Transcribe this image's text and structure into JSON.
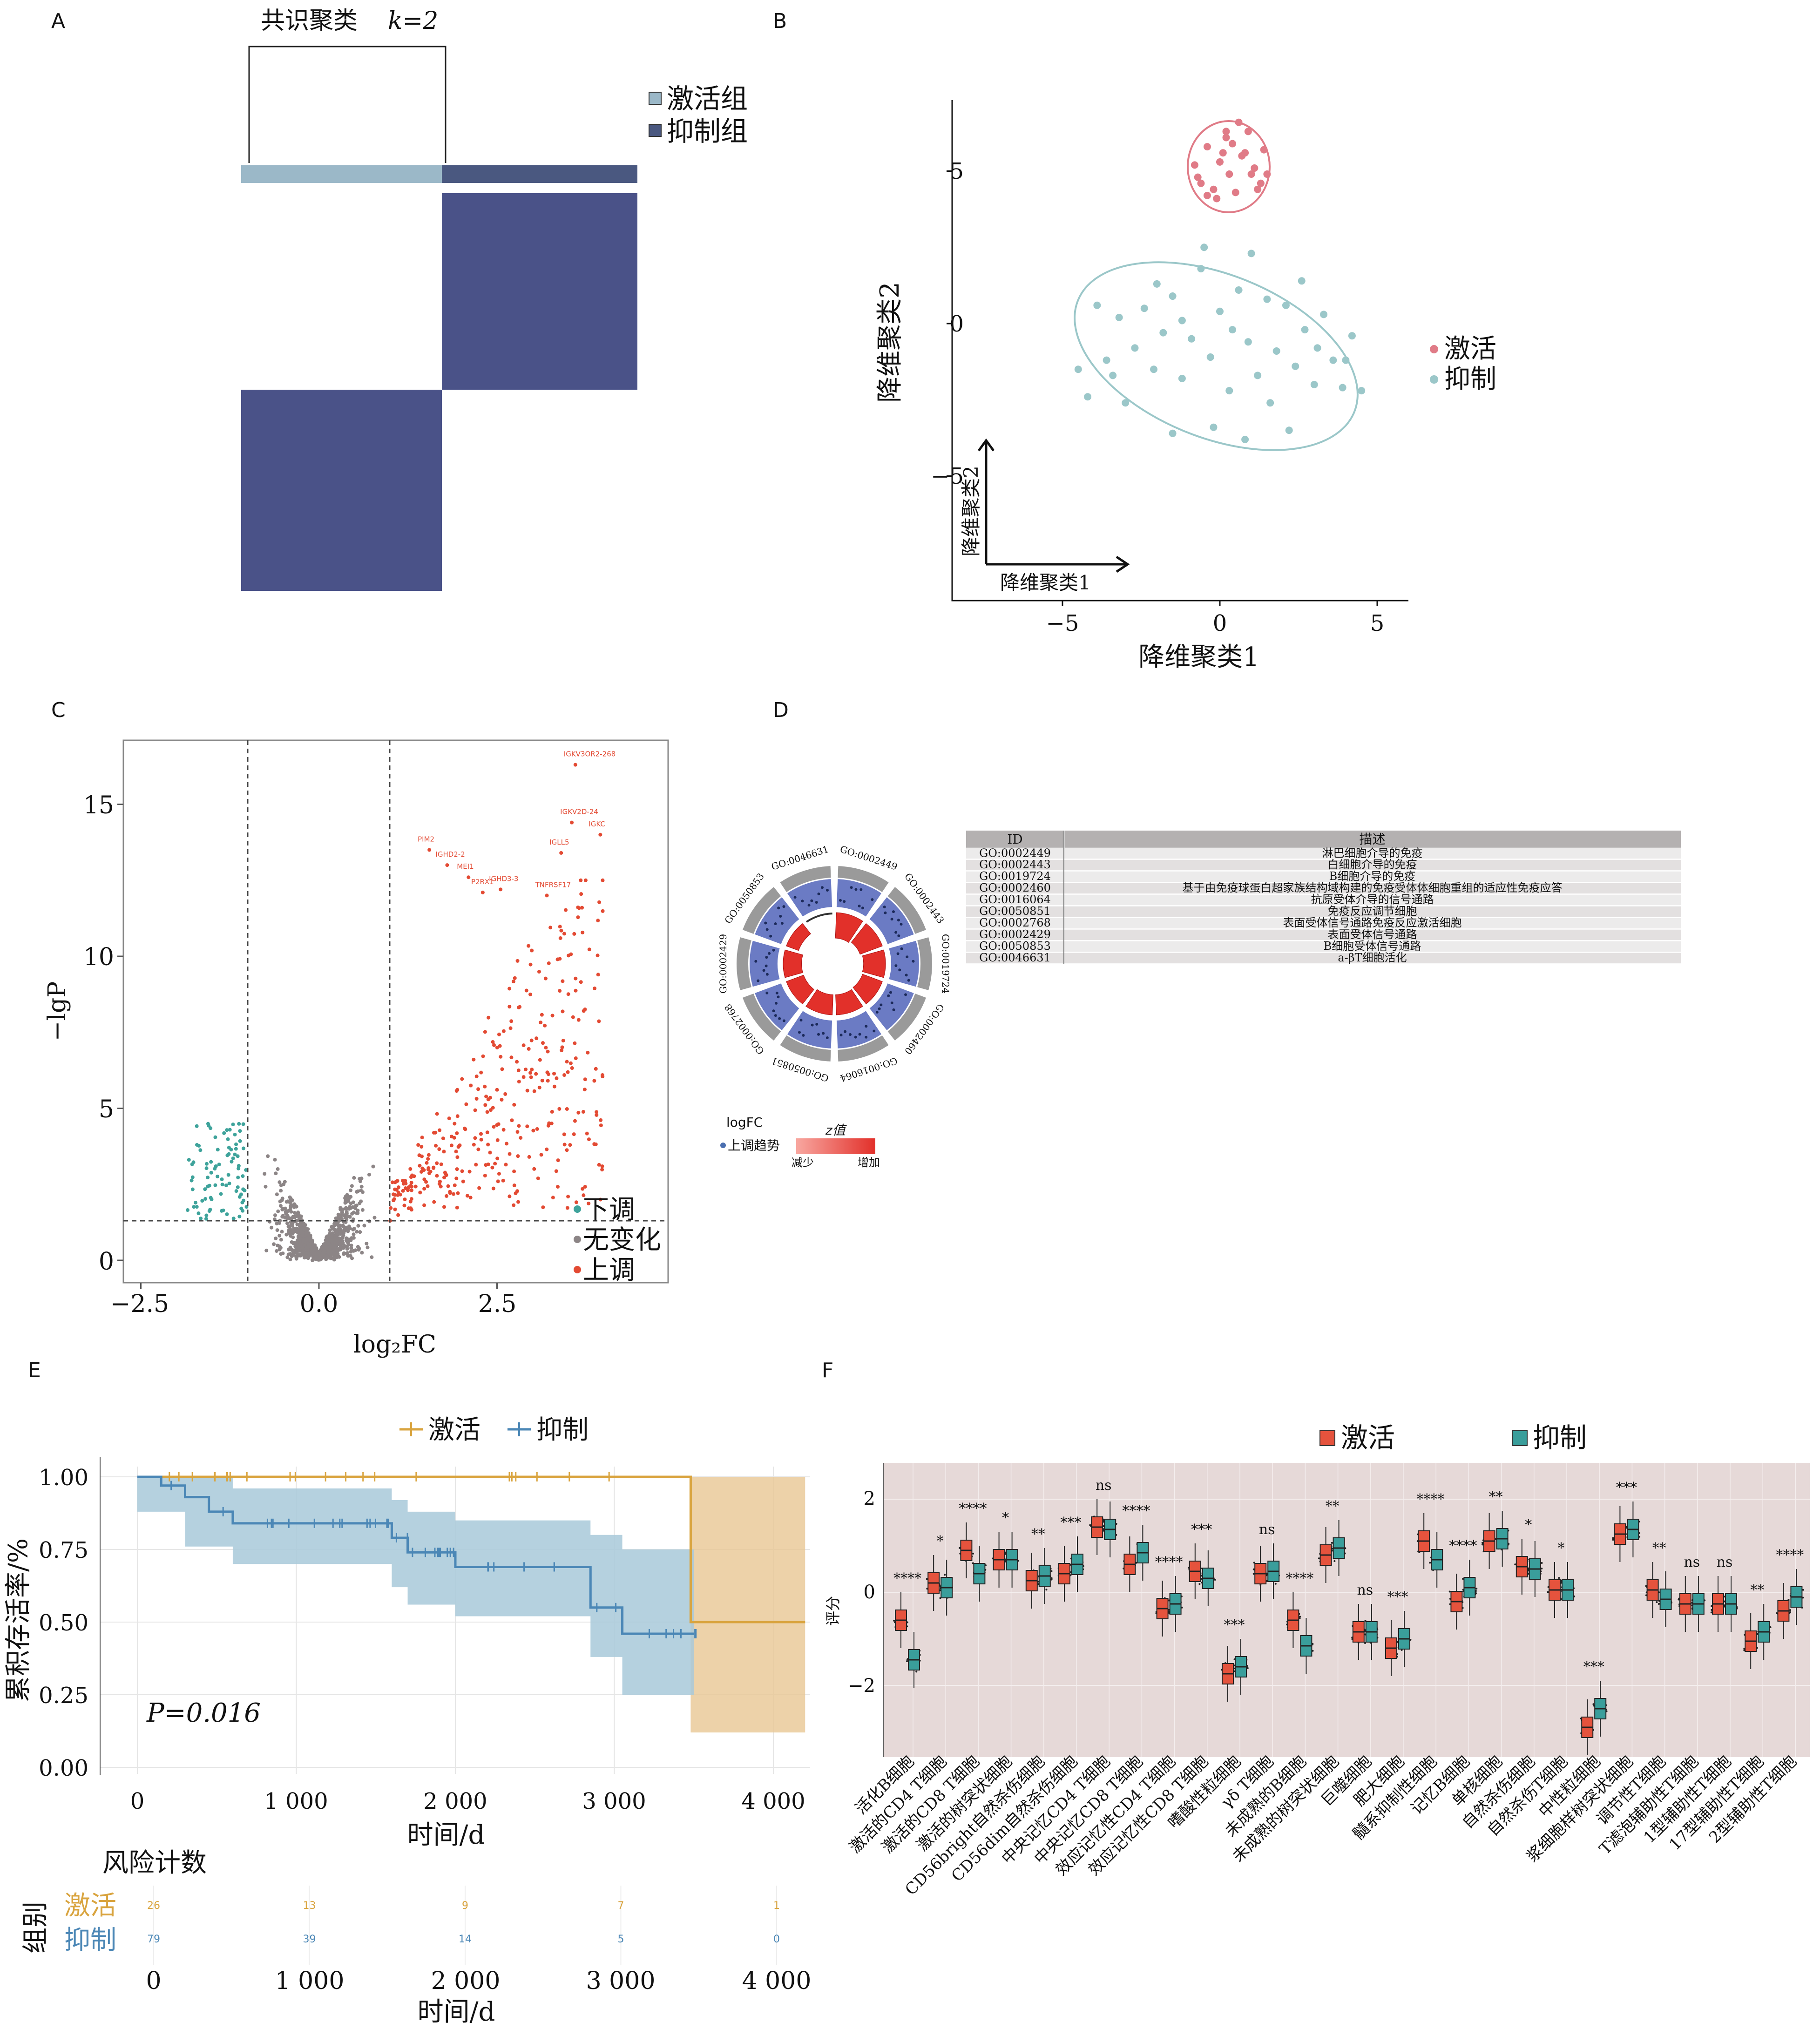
{
  "panel_labels": {
    "a": "A",
    "b": "B",
    "c": "C",
    "d": "D",
    "e": "E",
    "f": "F"
  },
  "colors": {
    "activated": "#9bb8c8",
    "suppressed": "#4a5288",
    "pink": "#e07b87",
    "teal": "#9bc7c9",
    "red": "#e34a33",
    "grey": "#8c8586",
    "tealdown": "#3ea39b",
    "gold": "#d9a43f",
    "blue": "#4b87b6",
    "boxred": "#e5533d",
    "boxteal": "#3a9e9b",
    "panelbg": "#e6d9d8"
  },
  "a": {
    "title": "共识聚类",
    "k": "k=2",
    "legend": [
      "激活组",
      "抑制组"
    ]
  },
  "b": {
    "xlabel": "降维聚类1",
    "ylabel": "降维聚类2",
    "xticks": [
      "−5",
      "0",
      "5"
    ],
    "yticks": [
      "5",
      "0",
      "−5"
    ],
    "arrow_x": "降维聚类1",
    "arrow_y": "降维聚类2",
    "legend": [
      "激活",
      "抑制"
    ]
  },
  "c": {
    "xlabel": "log₂FC",
    "ylabel": "−lgP",
    "xticks": [
      "−2.5",
      "0.0",
      "2.5"
    ],
    "yticks": [
      "15",
      "10",
      "5",
      "0"
    ],
    "legend": [
      "下调",
      "无变化",
      "上调"
    ],
    "genes": [
      "IGKV3OR2-268",
      "IGKV2D-24",
      "IGKC",
      "PIM2",
      "IGLL5",
      "IGHD2-2",
      "MEI1",
      "IGHD3-3",
      "P2RX1",
      "TNFRSF17"
    ]
  },
  "d": {
    "go_ids": [
      "GO:0002449",
      "GO:0002443",
      "GO:0019724",
      "GO:0002460",
      "GO:0016064",
      "GO:0050851",
      "GO:0002768",
      "GO:0002429",
      "GO:0050853",
      "GO:0046631"
    ],
    "legend_title": "logFC",
    "legend_dot": "上调趋势",
    "z_title": "z值",
    "z_low": "减少",
    "z_high": "增加",
    "table": {
      "header": [
        "ID",
        "描述"
      ],
      "rows": [
        [
          "GO:0002449",
          "淋巴细胞介导的免疫"
        ],
        [
          "GO:0002443",
          "白细胞介导的免疫"
        ],
        [
          "GO:0019724",
          "B细胞介导的免疫"
        ],
        [
          "GO:0002460",
          "基于由免疫球蛋白超家族结构域构建的免疫受体体细胞重组的适应性免疫应答"
        ],
        [
          "GO:0016064",
          "抗原受体介导的信号通路"
        ],
        [
          "GO:0050851",
          "免疫反应调节细胞"
        ],
        [
          "GO:0002768",
          "表面受体信号通路免疫反应激活细胞"
        ],
        [
          "GO:0002429",
          "表面受体信号通路"
        ],
        [
          "GO:0050853",
          "B细胞受体信号通路"
        ],
        [
          "GO:0046631",
          "a-βT细胞活化"
        ]
      ]
    }
  },
  "e": {
    "legend": [
      "激活",
      "抑制"
    ],
    "ylabel": "累积存活率/%",
    "xlabel": "时间/d",
    "yticks": [
      "1.00",
      "0.75",
      "0.50",
      "0.25",
      "0.00"
    ],
    "xticks": [
      "0",
      "1 000",
      "2 000",
      "3 000",
      "4 000"
    ],
    "pvalue": "P=0.016",
    "risk_title": "风险计数",
    "risk_ylabel": "组别",
    "risk_groups": [
      "激活",
      "抑制"
    ],
    "risk_activated": [
      "26",
      "13",
      "9",
      "7",
      "1"
    ],
    "risk_suppressed": [
      "79",
      "39",
      "14",
      "5",
      "0"
    ],
    "risk_xlabel": "时间/d"
  },
  "f": {
    "legend": [
      "激活",
      "抑制"
    ],
    "ylabel": "评分",
    "yticks": [
      "2",
      "0",
      "−2"
    ]
  },
  "chart_data": [
    {
      "panel": "A",
      "type": "heatmap",
      "title": "共识聚类 k=2",
      "groups": [
        "激活组",
        "抑制组"
      ],
      "matrix": [
        [
          0,
          1
        ],
        [
          1,
          0
        ]
      ]
    },
    {
      "panel": "B",
      "type": "scatter",
      "xlabel": "降维聚类1",
      "ylabel": "降维聚类2",
      "xlim": [
        -8,
        6
      ],
      "ylim": [
        -9,
        7.5
      ],
      "series": [
        {
          "name": "激活",
          "points": [
            [
              -0.8,
              5.2
            ],
            [
              -0.6,
              4.6
            ],
            [
              -0.4,
              5.8
            ],
            [
              -0.2,
              4.4
            ],
            [
              0,
              5.3
            ],
            [
              0.2,
              6.3
            ],
            [
              0.4,
              5.9
            ],
            [
              0.6,
              6.6
            ],
            [
              0.8,
              5.6
            ],
            [
              1,
              4.9
            ],
            [
              1.2,
              4.4
            ],
            [
              1.4,
              5.7
            ],
            [
              -0.4,
              4.2
            ],
            [
              0.3,
              4.9
            ],
            [
              0.9,
              6.3
            ],
            [
              1.5,
              4.9
            ],
            [
              0.1,
              5.6
            ],
            [
              -0.7,
              4.8
            ],
            [
              0.5,
              4.3
            ],
            [
              1.1,
              5.1
            ],
            [
              -0.1,
              4.1
            ],
            [
              0.7,
              5.5
            ],
            [
              1.3,
              4.6
            ],
            [
              0.2,
              6.1
            ]
          ]
        },
        {
          "name": "抑制",
          "points": [
            [
              -4.2,
              -2.4
            ],
            [
              -3.9,
              0.6
            ],
            [
              -3.6,
              -1.2
            ],
            [
              -3.2,
              0.2
            ],
            [
              -3,
              -2.6
            ],
            [
              -2.7,
              -0.8
            ],
            [
              -2.4,
              0.5
            ],
            [
              -2.1,
              -1.5
            ],
            [
              -1.8,
              -0.3
            ],
            [
              -1.5,
              0.9
            ],
            [
              -1.2,
              -1.8
            ],
            [
              -0.9,
              -0.5
            ],
            [
              -0.6,
              1.8
            ],
            [
              -0.3,
              -1.1
            ],
            [
              0,
              0.4
            ],
            [
              0.3,
              -2.2
            ],
            [
              0.6,
              1.1
            ],
            [
              0.9,
              -0.6
            ],
            [
              1.2,
              -1.7
            ],
            [
              1.5,
              0.8
            ],
            [
              1.8,
              -0.9
            ],
            [
              2.1,
              0.6
            ],
            [
              2.4,
              -1.4
            ],
            [
              2.7,
              -0.2
            ],
            [
              3,
              -2
            ],
            [
              3.3,
              0.3
            ],
            [
              3.6,
              -1.2
            ],
            [
              3.9,
              -2.1
            ],
            [
              4.2,
              -0.4
            ],
            [
              4.5,
              -2.2
            ],
            [
              -2,
              1.3
            ],
            [
              -0.5,
              2.5
            ],
            [
              1,
              2.3
            ],
            [
              2.6,
              1.4
            ],
            [
              -1.2,
              0.1
            ],
            [
              0.4,
              -0.2
            ],
            [
              1.6,
              -2.6
            ],
            [
              -3.4,
              -1.7
            ],
            [
              3.1,
              -0.8
            ],
            [
              -0.2,
              -3.4
            ],
            [
              0.8,
              -3.8
            ],
            [
              2.2,
              -3.5
            ],
            [
              -1.5,
              -3.6
            ],
            [
              4,
              -1.2
            ],
            [
              -4.5,
              -1.5
            ]
          ]
        }
      ]
    },
    {
      "panel": "C",
      "type": "scatter",
      "xlabel": "log₂FC",
      "ylabel": "−lgP",
      "xlim": [
        -2.8,
        4.6
      ],
      "ylim": [
        -0.5,
        17
      ],
      "thresholds": {
        "fc": [
          -1,
          1
        ],
        "lgp": 1.3
      },
      "series": [
        "下调",
        "无变化",
        "上调"
      ]
    },
    {
      "panel": "E",
      "type": "line",
      "title": "",
      "xlabel": "时间/d",
      "ylabel": "累积存活率/%",
      "xlim": [
        0,
        4200
      ],
      "ylim": [
        0,
        1
      ],
      "series": [
        {
          "name": "激活",
          "x": [
            0,
            3480,
            3480,
            4200
          ],
          "y": [
            1,
            1,
            0.5,
            0.5
          ]
        },
        {
          "name": "抑制",
          "x": [
            0,
            150,
            300,
            450,
            600,
            1600,
            1700,
            2000,
            2200,
            2850,
            3050,
            3500
          ],
          "y": [
            1,
            0.97,
            0.93,
            0.88,
            0.84,
            0.79,
            0.74,
            0.69,
            0.69,
            0.55,
            0.46,
            0.46
          ]
        }
      ]
    },
    {
      "panel": "F",
      "type": "box",
      "ylabel": "评分",
      "ylim": [
        -3.5,
        2.4
      ],
      "categories": [
        "活化B细胞",
        "激活的CD4 T细胞",
        "激活的CD8 T细胞",
        "激活的树突状细胞",
        "CD56bright自然杀伤细胞",
        "CD56dim自然杀伤细胞",
        "中央记忆CD4 T细胞",
        "中央记忆CD8 T细胞",
        "效应记忆性CD4 T细胞",
        "效应记忆性CD8 T细胞",
        "嗜酸性粒细胞",
        "γδ T细胞",
        "未成熟的B细胞",
        "未成熟的树突状细胞",
        "巨噬细胞",
        "肥大细胞",
        "髓系抑制性细胞",
        "记忆B细胞",
        "单核细胞",
        "自然杀伤细胞",
        "自然杀伤T细胞",
        "中性粒细胞",
        "浆细胞样树突状细胞",
        "调节性T细胞",
        "T滤泡辅助性T细胞",
        "1型辅助性T细胞",
        "17型辅助性T细胞",
        "2型辅助性T细胞"
      ],
      "significance": [
        "****",
        "*",
        "****",
        "*",
        "**",
        "***",
        "ns",
        "****",
        "****",
        "***",
        "***",
        "ns",
        "****",
        "**",
        "ns",
        "***",
        "****",
        "****",
        "**",
        "*",
        "*",
        "***",
        "***",
        "**",
        "ns",
        "ns",
        "**",
        "****"
      ],
      "series": [
        {
          "name": "激活",
          "medians": [
            -0.6,
            0.2,
            0.9,
            0.7,
            0.25,
            0.4,
            1.4,
            0.6,
            -0.35,
            0.45,
            -1.75,
            0.4,
            -0.6,
            0.8,
            -0.85,
            -1.2,
            1.1,
            -0.2,
            1.1,
            0.55,
            0.05,
            -2.9,
            1.25,
            0.05,
            -0.25,
            -0.25,
            -1.05,
            -0.4
          ]
        },
        {
          "name": "抑制",
          "medians": [
            -1.45,
            0.1,
            0.4,
            0.7,
            0.35,
            0.6,
            1.35,
            0.85,
            -0.25,
            0.3,
            -1.6,
            0.45,
            -1.15,
            0.95,
            -0.85,
            -1.0,
            0.7,
            0.1,
            1.15,
            0.5,
            0.05,
            -2.5,
            1.35,
            -0.15,
            -0.25,
            -0.25,
            -0.85,
            -0.1
          ]
        }
      ]
    }
  ]
}
